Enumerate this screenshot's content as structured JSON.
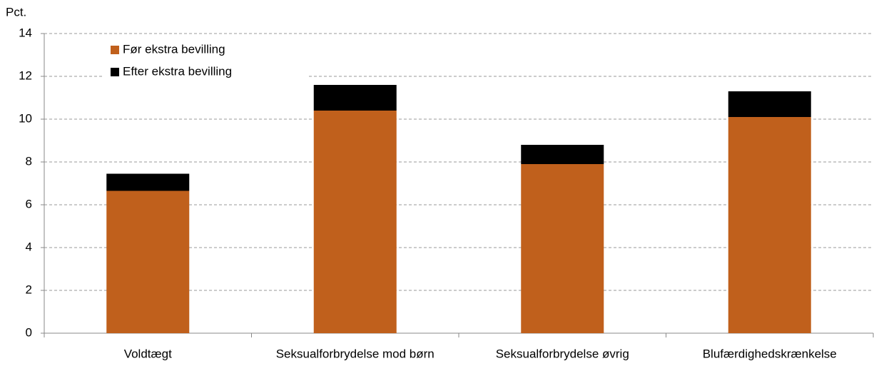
{
  "chart_data": {
    "type": "stacked_bar",
    "y_label": "Pct.",
    "categories": [
      "Voldtægt",
      "Seksualforbrydelse mod børn",
      "Seksualforbrydelse øvrig",
      "Blufærdighedskrænkelse"
    ],
    "series": [
      {
        "name": "Før ekstra bevilling",
        "color": "#c0601c",
        "values": [
          6.65,
          10.4,
          7.9,
          10.1
        ]
      },
      {
        "name": "Efter ekstra bevilling",
        "color": "#000000",
        "values": [
          0.8,
          1.2,
          0.9,
          1.2
        ]
      }
    ],
    "ylim": [
      0,
      14
    ],
    "yticks": [
      0,
      2,
      4,
      6,
      8,
      10,
      12,
      14
    ],
    "grid": true,
    "legend": "upper left"
  }
}
